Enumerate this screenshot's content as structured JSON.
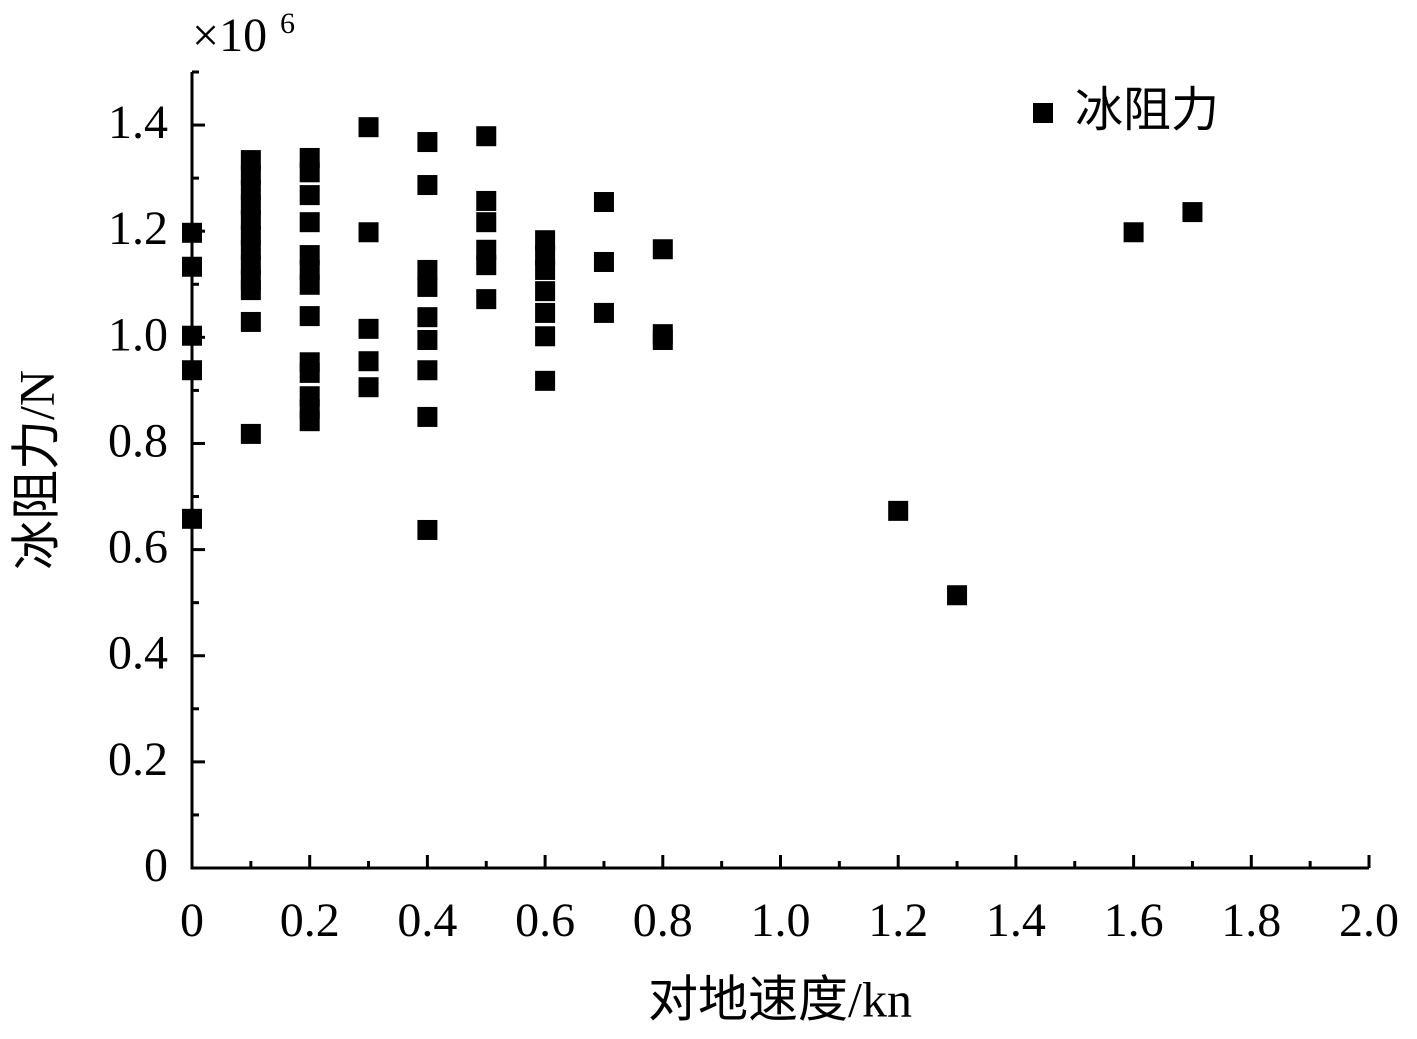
{
  "chart_data": {
    "type": "scatter",
    "x_label": "对地速度/kn",
    "y_label": "冰阻力/N",
    "y_multiplier": {
      "base": "×10",
      "exponent": "6"
    },
    "xlim": [
      0,
      2.0
    ],
    "ylim": [
      0,
      1.5
    ],
    "xticks": [
      0,
      0.2,
      0.4,
      0.6,
      0.8,
      {
        "value": 1,
        "label": "1.0"
      },
      1.2,
      1.4,
      1.6,
      1.8,
      {
        "value": 2,
        "label": "2.0"
      }
    ],
    "yticks": [
      0,
      0.2,
      0.4,
      0.6,
      0.8,
      {
        "value": 1,
        "label": "1.0"
      },
      1.2,
      1.4
    ],
    "x_minor_ticks": [
      0.1,
      0.3,
      0.5,
      0.7,
      0.9,
      1.1,
      1.3,
      1.5,
      1.7,
      1.9
    ],
    "y_minor_ticks": [
      0.1,
      0.3,
      0.5,
      0.7,
      0.9,
      1.1,
      1.3,
      1.5
    ],
    "legend_position": "upper right",
    "series": [
      {
        "name": "冰阻力",
        "color": "#000000",
        "x": [
          0,
          0,
          0,
          0,
          0,
          0.1,
          0.1,
          0.1,
          0.1,
          0.1,
          0.1,
          0.1,
          0.1,
          0.1,
          0.1,
          0.1,
          0.1,
          0.2,
          0.2,
          0.2,
          0.2,
          0.2,
          0.2,
          0.2,
          0.2,
          0.2,
          0.2,
          0.2,
          0.2,
          0.2,
          0.3,
          0.3,
          0.3,
          0.3,
          0.3,
          0.4,
          0.4,
          0.4,
          0.4,
          0.4,
          0.4,
          0.4,
          0.4,
          0.4,
          0.5,
          0.5,
          0.5,
          0.5,
          0.5,
          0.5,
          0.6,
          0.6,
          0.6,
          0.6,
          0.6,
          0.6,
          0.6,
          0.7,
          0.7,
          0.7,
          0.8,
          0.8,
          0.8,
          1.2,
          1.3,
          1.6,
          1.7
        ],
        "values": [
          1.197,
          1.133,
          1.003,
          0.938,
          0.658,
          1.334,
          1.306,
          1.278,
          1.249,
          1.221,
          1.193,
          1.165,
          1.136,
          1.108,
          1.089,
          1.029,
          0.818,
          1.338,
          1.311,
          1.268,
          1.217,
          1.155,
          1.127,
          1.099,
          1.04,
          0.953,
          0.933,
          0.889,
          0.865,
          0.842,
          1.396,
          1.198,
          1.016,
          0.955,
          0.906,
          1.368,
          1.287,
          1.127,
          1.095,
          1.038,
          0.995,
          0.938,
          0.85,
          0.637,
          1.379,
          1.257,
          1.217,
          1.165,
          1.136,
          1.072,
          1.183,
          1.155,
          1.127,
          1.087,
          1.046,
          1.002,
          0.918,
          1.255,
          1.142,
          1.046,
          1.166,
          1.006,
          0.995,
          0.673,
          0.514,
          1.198,
          1.236
        ]
      }
    ]
  }
}
